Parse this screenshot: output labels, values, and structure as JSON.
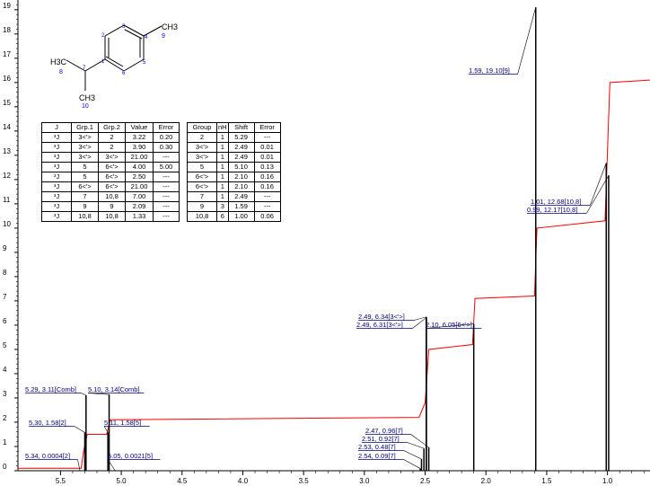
{
  "chart_data": {
    "type": "line",
    "title": "",
    "xlabel": "",
    "ylabel": "",
    "x_reversed": true,
    "xlim": [
      5.85,
      0.65
    ],
    "ylim": [
      0,
      19.4
    ],
    "x_ticks": [
      "5.5",
      "5.0",
      "4.5",
      "4.0",
      "3.5",
      "3.0",
      "2.5",
      "2.0",
      "1.5",
      "1.0"
    ],
    "y_ticks": [
      "0",
      "1",
      "2",
      "3",
      "4",
      "5",
      "6",
      "7",
      "8",
      "9",
      "10",
      "11",
      "12",
      "13",
      "14",
      "15",
      "16",
      "17",
      "18",
      "19"
    ],
    "peaks": [
      {
        "x": 5.34,
        "y": 0.0004,
        "label": "5.34, 0.0004[2]"
      },
      {
        "x": 5.3,
        "y": 1.58,
        "label": "5.30, 1.58[2]"
      },
      {
        "x": 5.29,
        "y": 3.11,
        "label": "5.29, 3.11[Comb]"
      },
      {
        "x": 5.11,
        "y": 1.58,
        "label": "5.11, 1.58[5]"
      },
      {
        "x": 5.1,
        "y": 3.14,
        "label": "5.10, 3.14[Comb]"
      },
      {
        "x": 5.05,
        "y": 0.0021,
        "label": "5.05, 0.0021[5]"
      },
      {
        "x": 2.54,
        "y": 0.09,
        "label": "2.54, 0.09[7]"
      },
      {
        "x": 2.53,
        "y": 0.48,
        "label": "2.53, 0.48[7]"
      },
      {
        "x": 2.51,
        "y": 0.92,
        "label": "2.51, 0.92[7]"
      },
      {
        "x": 2.49,
        "y": 6.34,
        "label": "2.49, 6.34[3<'>]"
      },
      {
        "x": 2.49,
        "y": 6.31,
        "label": "2.49, 6.31[3<'>]"
      },
      {
        "x": 2.47,
        "y": 0.96,
        "label": "2.47, 0.96[7]"
      },
      {
        "x": 2.1,
        "y": 6.05,
        "label": "2.10, 6.05[6<'>]"
      },
      {
        "x": 1.59,
        "y": 19.1,
        "label": "1.59, 19.10[9]"
      },
      {
        "x": 1.01,
        "y": 12.68,
        "label": "1.01, 12.68[10,8]"
      },
      {
        "x": 0.99,
        "y": 12.17,
        "label": "0.99, 12.17[10,8]"
      }
    ],
    "integral": {
      "x": [
        5.85,
        5.33,
        5.31,
        5.28,
        5.12,
        5.09,
        2.55,
        2.5,
        2.47,
        2.11,
        2.09,
        1.6,
        1.58,
        1.02,
        0.98,
        0.65
      ],
      "y": [
        0.1,
        0.1,
        0.8,
        1.5,
        1.5,
        2.1,
        2.2,
        2.8,
        5.0,
        5.2,
        7.1,
        7.2,
        10.0,
        10.3,
        16.0,
        16.1
      ]
    }
  },
  "j_table": {
    "headers": [
      "J",
      "Grp.1",
      "Grp.2",
      "Value",
      "Error"
    ],
    "rows": [
      [
        "³J",
        "3<'>",
        "2",
        "3.22",
        "0.20"
      ],
      [
        "³J",
        "3<'>",
        "2",
        "3.90",
        "0.30"
      ],
      [
        "³J",
        "3<'>",
        "3<'>",
        "21.00",
        "---"
      ],
      [
        "³J",
        "5",
        "6<'>",
        "4.00",
        "5.00"
      ],
      [
        "³J",
        "5",
        "6<'>",
        "2.50",
        "---"
      ],
      [
        "³J",
        "6<'>",
        "6<'>",
        "21.00",
        "---"
      ],
      [
        "³J",
        "7",
        "10,8",
        "7.00",
        "---"
      ],
      [
        "³J",
        "9",
        "9",
        "2.09",
        "---"
      ],
      [
        "³J",
        "10,8",
        "10,8",
        "1.33",
        "---"
      ]
    ]
  },
  "shift_table": {
    "headers": [
      "Group",
      "nH",
      "Shift",
      "Error"
    ],
    "rows": [
      [
        "2",
        "1",
        "5.29",
        "---"
      ],
      [
        "3<'>",
        "1",
        "2.49",
        "0.01"
      ],
      [
        "3<'>",
        "1",
        "2.49",
        "0.01"
      ],
      [
        "5",
        "1",
        "5.10",
        "0.13"
      ],
      [
        "6<'>",
        "1",
        "2.10",
        "0.16"
      ],
      [
        "6<'>",
        "1",
        "2.10",
        "0.16"
      ],
      [
        "7",
        "1",
        "2.49",
        "---"
      ],
      [
        "9",
        "3",
        "1.59",
        "---"
      ],
      [
        "10,8",
        "6",
        "1.00",
        "0.06"
      ]
    ]
  },
  "molecule": {
    "labels": {
      "ch3_left": "H3C",
      "ch3_left_num": "8",
      "ch3_right": "CH3",
      "ch3_right_num": "9",
      "ch3_bottom": "CH3",
      "ch3_bottom_num": "10",
      "atom_1": "1",
      "atom_2": "2",
      "atom_3": "3",
      "atom_4": "4",
      "atom_5": "5",
      "atom_6": "6",
      "atom_7": "7"
    }
  },
  "colors": {
    "integral": "#ff0000",
    "spectrum": "#000000",
    "peak_label": "#000080",
    "atom_number": "#0000ff"
  }
}
